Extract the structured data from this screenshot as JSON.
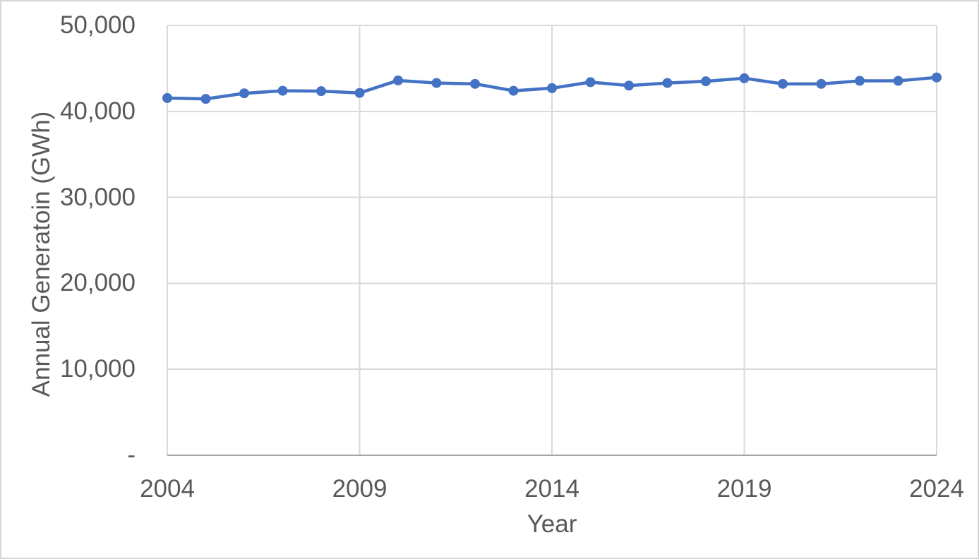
{
  "chart_data": {
    "type": "line",
    "xlabel": "Year",
    "ylabel": "Annual Generatoin (GWh)",
    "x": [
      2004,
      2005,
      2006,
      2007,
      2008,
      2009,
      2010,
      2011,
      2012,
      2013,
      2014,
      2015,
      2016,
      2017,
      2018,
      2019,
      2020,
      2021,
      2022,
      2023,
      2024
    ],
    "series": [
      {
        "values": [
          41550,
          41450,
          42100,
          42400,
          42350,
          42150,
          43600,
          43300,
          43200,
          42400,
          42700,
          43400,
          43000,
          43300,
          43500,
          43850,
          43200,
          43200,
          43550,
          43550,
          43950
        ]
      }
    ],
    "xlim": [
      2004,
      2024
    ],
    "ylim": [
      0,
      50000
    ],
    "x_ticks": [
      2004,
      2009,
      2014,
      2019,
      2024
    ],
    "x_tick_labels": [
      "2004",
      "2009",
      "2014",
      "2019",
      "2024"
    ],
    "y_ticks": [
      0,
      10000,
      20000,
      30000,
      40000,
      50000
    ],
    "y_tick_labels": [
      "-",
      "10,000",
      "20,000",
      "30,000",
      "40,000",
      "50,000"
    ],
    "grid": true,
    "legend": false,
    "marker": "circle"
  },
  "style": {
    "line_color": "#4472C4",
    "marker_color": "#4472C4",
    "grid_color": "#D9D9D9",
    "axis_line_color": "#A6A6A6",
    "text_color": "#595959",
    "background": "#FFFFFF",
    "border_color": "#D7D7D7"
  }
}
